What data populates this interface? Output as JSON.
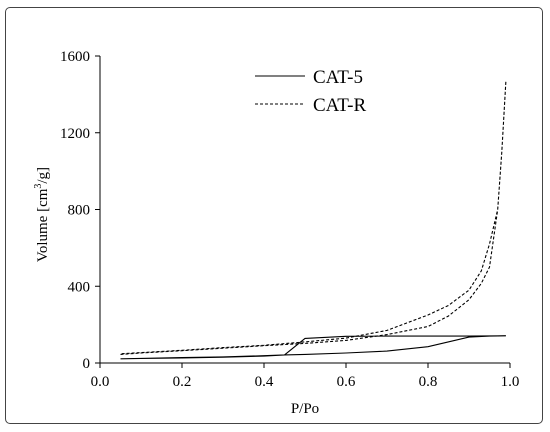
{
  "chart_data": {
    "type": "line",
    "xlabel": "P/Po",
    "ylabel_prefix": "Volume [cm",
    "ylabel_sup": "3",
    "ylabel_suffix": "/g]",
    "xlim": [
      0.0,
      1.0
    ],
    "ylim": [
      0,
      1600
    ],
    "x_ticks": [
      0.0,
      0.2,
      0.4,
      0.6,
      0.8,
      1.0
    ],
    "x_tick_labels": [
      "0.0",
      "0.2",
      "0.4",
      "0.6",
      "0.8",
      "1.0"
    ],
    "y_ticks": [
      0,
      400,
      800,
      1200,
      1600
    ],
    "y_tick_labels": [
      "0",
      "400",
      "800",
      "1200",
      "1600"
    ],
    "grid": false,
    "legend_position": "top-center",
    "series": [
      {
        "name": "CAT-5",
        "style": "solid",
        "color": "#000000",
        "x": [
          0.05,
          0.1,
          0.2,
          0.3,
          0.4,
          0.45,
          0.5,
          0.6,
          0.7,
          0.8,
          0.9,
          0.95,
          0.99,
          0.95,
          0.9,
          0.8,
          0.7,
          0.6,
          0.5,
          0.45,
          0.4,
          0.3,
          0.2,
          0.1,
          0.05
        ],
        "y": [
          22,
          24,
          28,
          32,
          38,
          42,
          45,
          52,
          62,
          85,
          135,
          140,
          142,
          141,
          140,
          140,
          140,
          139,
          128,
          42,
          36,
          30,
          26,
          24,
          22
        ]
      },
      {
        "name": "CAT-R",
        "style": "dashed",
        "color": "#000000",
        "x": [
          0.05,
          0.1,
          0.2,
          0.3,
          0.4,
          0.5,
          0.6,
          0.7,
          0.8,
          0.85,
          0.9,
          0.93,
          0.95,
          0.97,
          0.98,
          0.99,
          0.98,
          0.97,
          0.95,
          0.93,
          0.9,
          0.85,
          0.8,
          0.7,
          0.6,
          0.5,
          0.4,
          0.3,
          0.2,
          0.1,
          0.05
        ],
        "y": [
          45,
          52,
          64,
          77,
          90,
          102,
          118,
          148,
          190,
          245,
          330,
          415,
          500,
          800,
          1100,
          1470,
          1100,
          800,
          620,
          480,
          380,
          300,
          250,
          170,
          130,
          110,
          92,
          80,
          66,
          54,
          48
        ]
      }
    ]
  }
}
